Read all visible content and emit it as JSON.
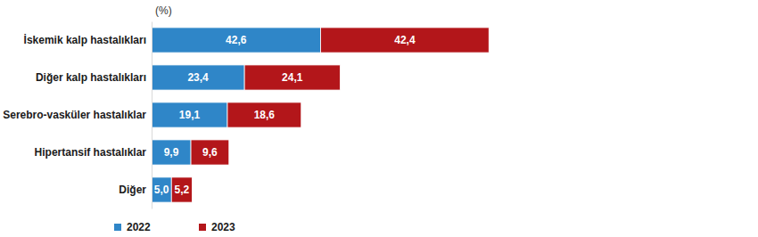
{
  "chart_data": {
    "type": "bar",
    "orientation": "horizontal",
    "stacked": true,
    "data_labels": true,
    "tick_labels": "y",
    "grid": false,
    "legend": "bottom-left",
    "xlabel": "(%)",
    "categories": [
      "İskemik kalp hastalıkları",
      "Diğer kalp hastalıkları",
      "Serebro-vasküler hastalıklar",
      "Hipertansif hastalıklar",
      "Diğer"
    ],
    "series": [
      {
        "name": "2022",
        "color": "#2f86c8",
        "values": [
          42.6,
          23.4,
          19.1,
          9.9,
          5.0
        ],
        "value_labels": [
          "42,6",
          "23,4",
          "19,1",
          "9,9",
          "5,0"
        ]
      },
      {
        "name": "2023",
        "color": "#b3161a",
        "values": [
          42.4,
          24.1,
          18.6,
          9.6,
          5.2
        ],
        "value_labels": [
          "42,4",
          "24,1",
          "18,6",
          "9,6",
          "5,2"
        ]
      }
    ],
    "xlim": [
      0,
      100
    ]
  }
}
